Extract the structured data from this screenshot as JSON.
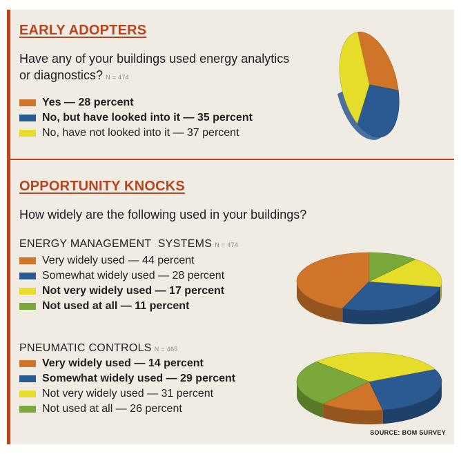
{
  "colors": {
    "accent": "#b5451f",
    "orange": "#d0742a",
    "blue": "#2b5a92",
    "yellow": "#e6dc2a",
    "green": "#7aa83a"
  },
  "chart_data": [
    {
      "type": "pie",
      "title": "EARLY ADOPTERS",
      "question": "Have any of your buildings used energy analytics or diagnostics?",
      "n_label": "N = 474",
      "categories": [
        "Yes",
        "No, but have looked into it",
        "No, have not looked into it"
      ],
      "values": [
        28,
        35,
        37
      ],
      "legend": [
        {
          "label": "Yes — 28 percent",
          "color": "orange",
          "bold": true
        },
        {
          "label": "No, but have looked into it — 35 percent",
          "color": "blue",
          "bold": true
        },
        {
          "label": "No, have not looked into it — 37 percent",
          "color": "yellow",
          "bold": false
        }
      ]
    },
    {
      "type": "pie",
      "subtitle": "ENERGY MANAGEMENT  SYSTEMS",
      "n_label": "N = 474",
      "categories": [
        "Very widely used",
        "Somewhat widely used",
        "Not very widely used",
        "Not used at all"
      ],
      "values": [
        44,
        28,
        17,
        11
      ],
      "legend": [
        {
          "label": "Very widely used — 44 percent",
          "color": "orange",
          "bold": false
        },
        {
          "label": "Somewhat widely used — 28 percent",
          "color": "blue",
          "bold": false
        },
        {
          "label": "Not very widely used — 17 percent",
          "color": "yellow",
          "bold": true
        },
        {
          "label": "Not used at all — 11 percent",
          "color": "green",
          "bold": true
        }
      ]
    },
    {
      "type": "pie",
      "subtitle": "PNEUMATIC CONTROLS",
      "n_label": "N = 465",
      "categories": [
        "Very widely used",
        "Somewhat widely used",
        "Not very widely used",
        "Not used at all"
      ],
      "values": [
        14,
        29,
        31,
        26
      ],
      "legend": [
        {
          "label": "Very widely used — 14 percent",
          "color": "orange",
          "bold": true
        },
        {
          "label": "Somewhat widely used — 29 percent",
          "color": "blue",
          "bold": true
        },
        {
          "label": "Not very widely used — 31 percent",
          "color": "yellow",
          "bold": false
        },
        {
          "label": "Not used at all — 26 percent",
          "color": "green",
          "bold": false
        }
      ]
    }
  ],
  "section2": {
    "title": "OPPORTUNITY KNOCKS",
    "question": "How widely are the following used in your buildings?"
  },
  "source": "SOURCE: BOM SURVEY"
}
